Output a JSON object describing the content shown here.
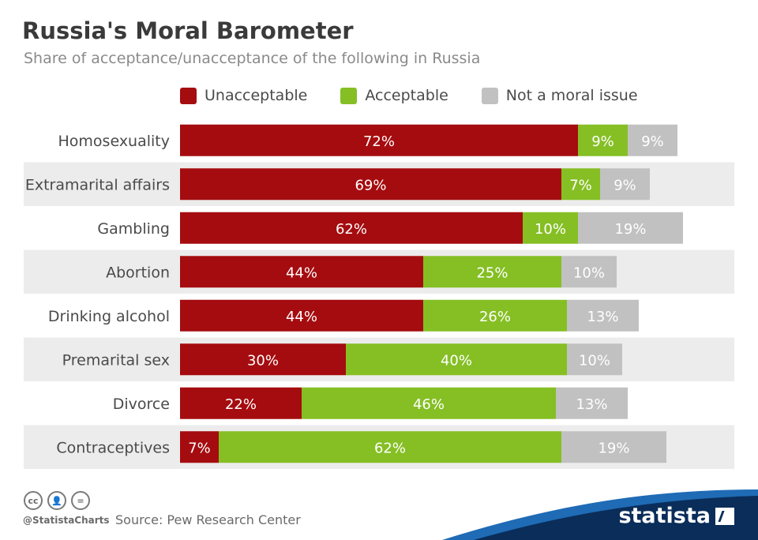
{
  "title": "Russia's Moral Barometer",
  "subtitle": "Share of acceptance/unacceptance of the following in Russia",
  "legend": [
    {
      "label": "Unacceptable",
      "color": "#a50c0f"
    },
    {
      "label": "Acceptable",
      "color": "#85bf24"
    },
    {
      "label": "Not a moral issue",
      "color": "#c1c1c1"
    }
  ],
  "footer": {
    "handle": "@StatistaCharts",
    "source": "Source: Pew Research Center",
    "brand": "statista"
  },
  "chart_data": {
    "type": "bar",
    "orientation": "horizontal",
    "stacked": true,
    "categories": [
      "Homosexuality",
      "Extramarital affairs",
      "Gambling",
      "Abortion",
      "Drinking alcohol",
      "Premarital sex",
      "Divorce",
      "Contraceptives"
    ],
    "series": [
      {
        "name": "Unacceptable",
        "color": "#a50c0f",
        "values": [
          72,
          69,
          62,
          44,
          44,
          30,
          22,
          7
        ]
      },
      {
        "name": "Acceptable",
        "color": "#85bf24",
        "values": [
          9,
          7,
          10,
          25,
          26,
          40,
          46,
          62
        ]
      },
      {
        "name": "Not a moral issue",
        "color": "#c1c1c1",
        "values": [
          9,
          9,
          19,
          10,
          13,
          10,
          13,
          19
        ]
      }
    ],
    "value_suffix": "%",
    "xlim": [
      0,
      100
    ],
    "grid": false,
    "legend_position": "top"
  }
}
